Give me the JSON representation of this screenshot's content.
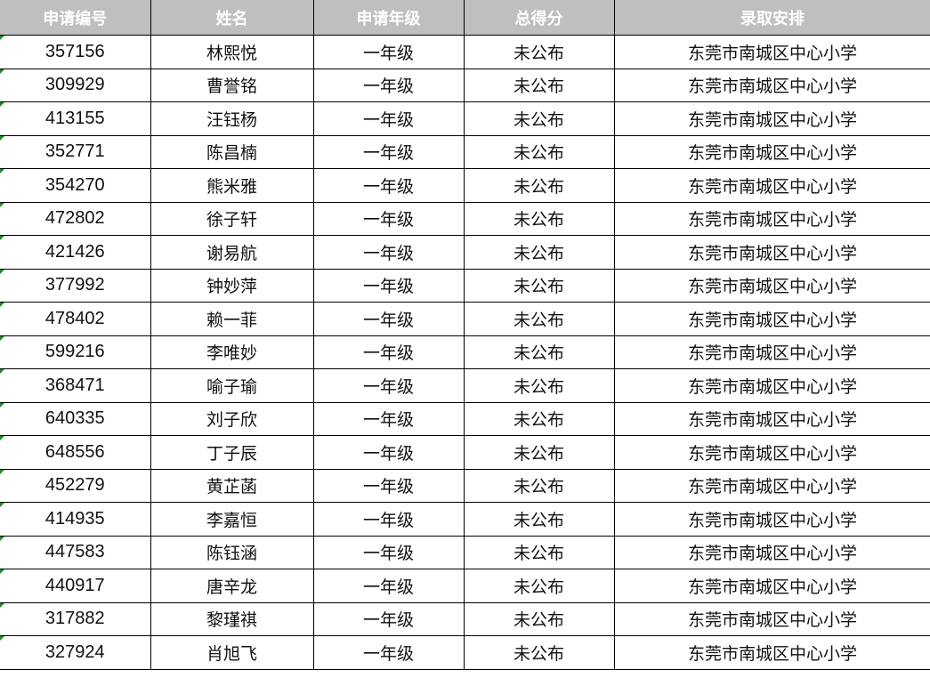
{
  "headers": [
    "申请编号",
    "姓名",
    "申请年级",
    "总得分",
    "录取安排"
  ],
  "rows": [
    [
      "357156",
      "林熙悦",
      "一年级",
      "未公布",
      "东莞市南城区中心小学"
    ],
    [
      "309929",
      "曹誉铭",
      "一年级",
      "未公布",
      "东莞市南城区中心小学"
    ],
    [
      "413155",
      "汪钰杨",
      "一年级",
      "未公布",
      "东莞市南城区中心小学"
    ],
    [
      "352771",
      "陈昌楠",
      "一年级",
      "未公布",
      "东莞市南城区中心小学"
    ],
    [
      "354270",
      "熊米雅",
      "一年级",
      "未公布",
      "东莞市南城区中心小学"
    ],
    [
      "472802",
      "徐子轩",
      "一年级",
      "未公布",
      "东莞市南城区中心小学"
    ],
    [
      "421426",
      "谢易航",
      "一年级",
      "未公布",
      "东莞市南城区中心小学"
    ],
    [
      "377992",
      "钟妙萍",
      "一年级",
      "未公布",
      "东莞市南城区中心小学"
    ],
    [
      "478402",
      "赖一菲",
      "一年级",
      "未公布",
      "东莞市南城区中心小学"
    ],
    [
      "599216",
      "李唯妙",
      "一年级",
      "未公布",
      "东莞市南城区中心小学"
    ],
    [
      "368471",
      "喻子瑜",
      "一年级",
      "未公布",
      "东莞市南城区中心小学"
    ],
    [
      "640335",
      "刘子欣",
      "一年级",
      "未公布",
      "东莞市南城区中心小学"
    ],
    [
      "648556",
      "丁子辰",
      "一年级",
      "未公布",
      "东莞市南城区中心小学"
    ],
    [
      "452279",
      "黄芷菡",
      "一年级",
      "未公布",
      "东莞市南城区中心小学"
    ],
    [
      "414935",
      "李嘉恒",
      "一年级",
      "未公布",
      "东莞市南城区中心小学"
    ],
    [
      "447583",
      "陈钰涵",
      "一年级",
      "未公布",
      "东莞市南城区中心小学"
    ],
    [
      "440917",
      "唐辛龙",
      "一年级",
      "未公布",
      "东莞市南城区中心小学"
    ],
    [
      "317882",
      "黎瑾祺",
      "一年级",
      "未公布",
      "东莞市南城区中心小学"
    ],
    [
      "327924",
      "肖旭飞",
      "一年级",
      "未公布",
      "东莞市南城区中心小学"
    ]
  ]
}
